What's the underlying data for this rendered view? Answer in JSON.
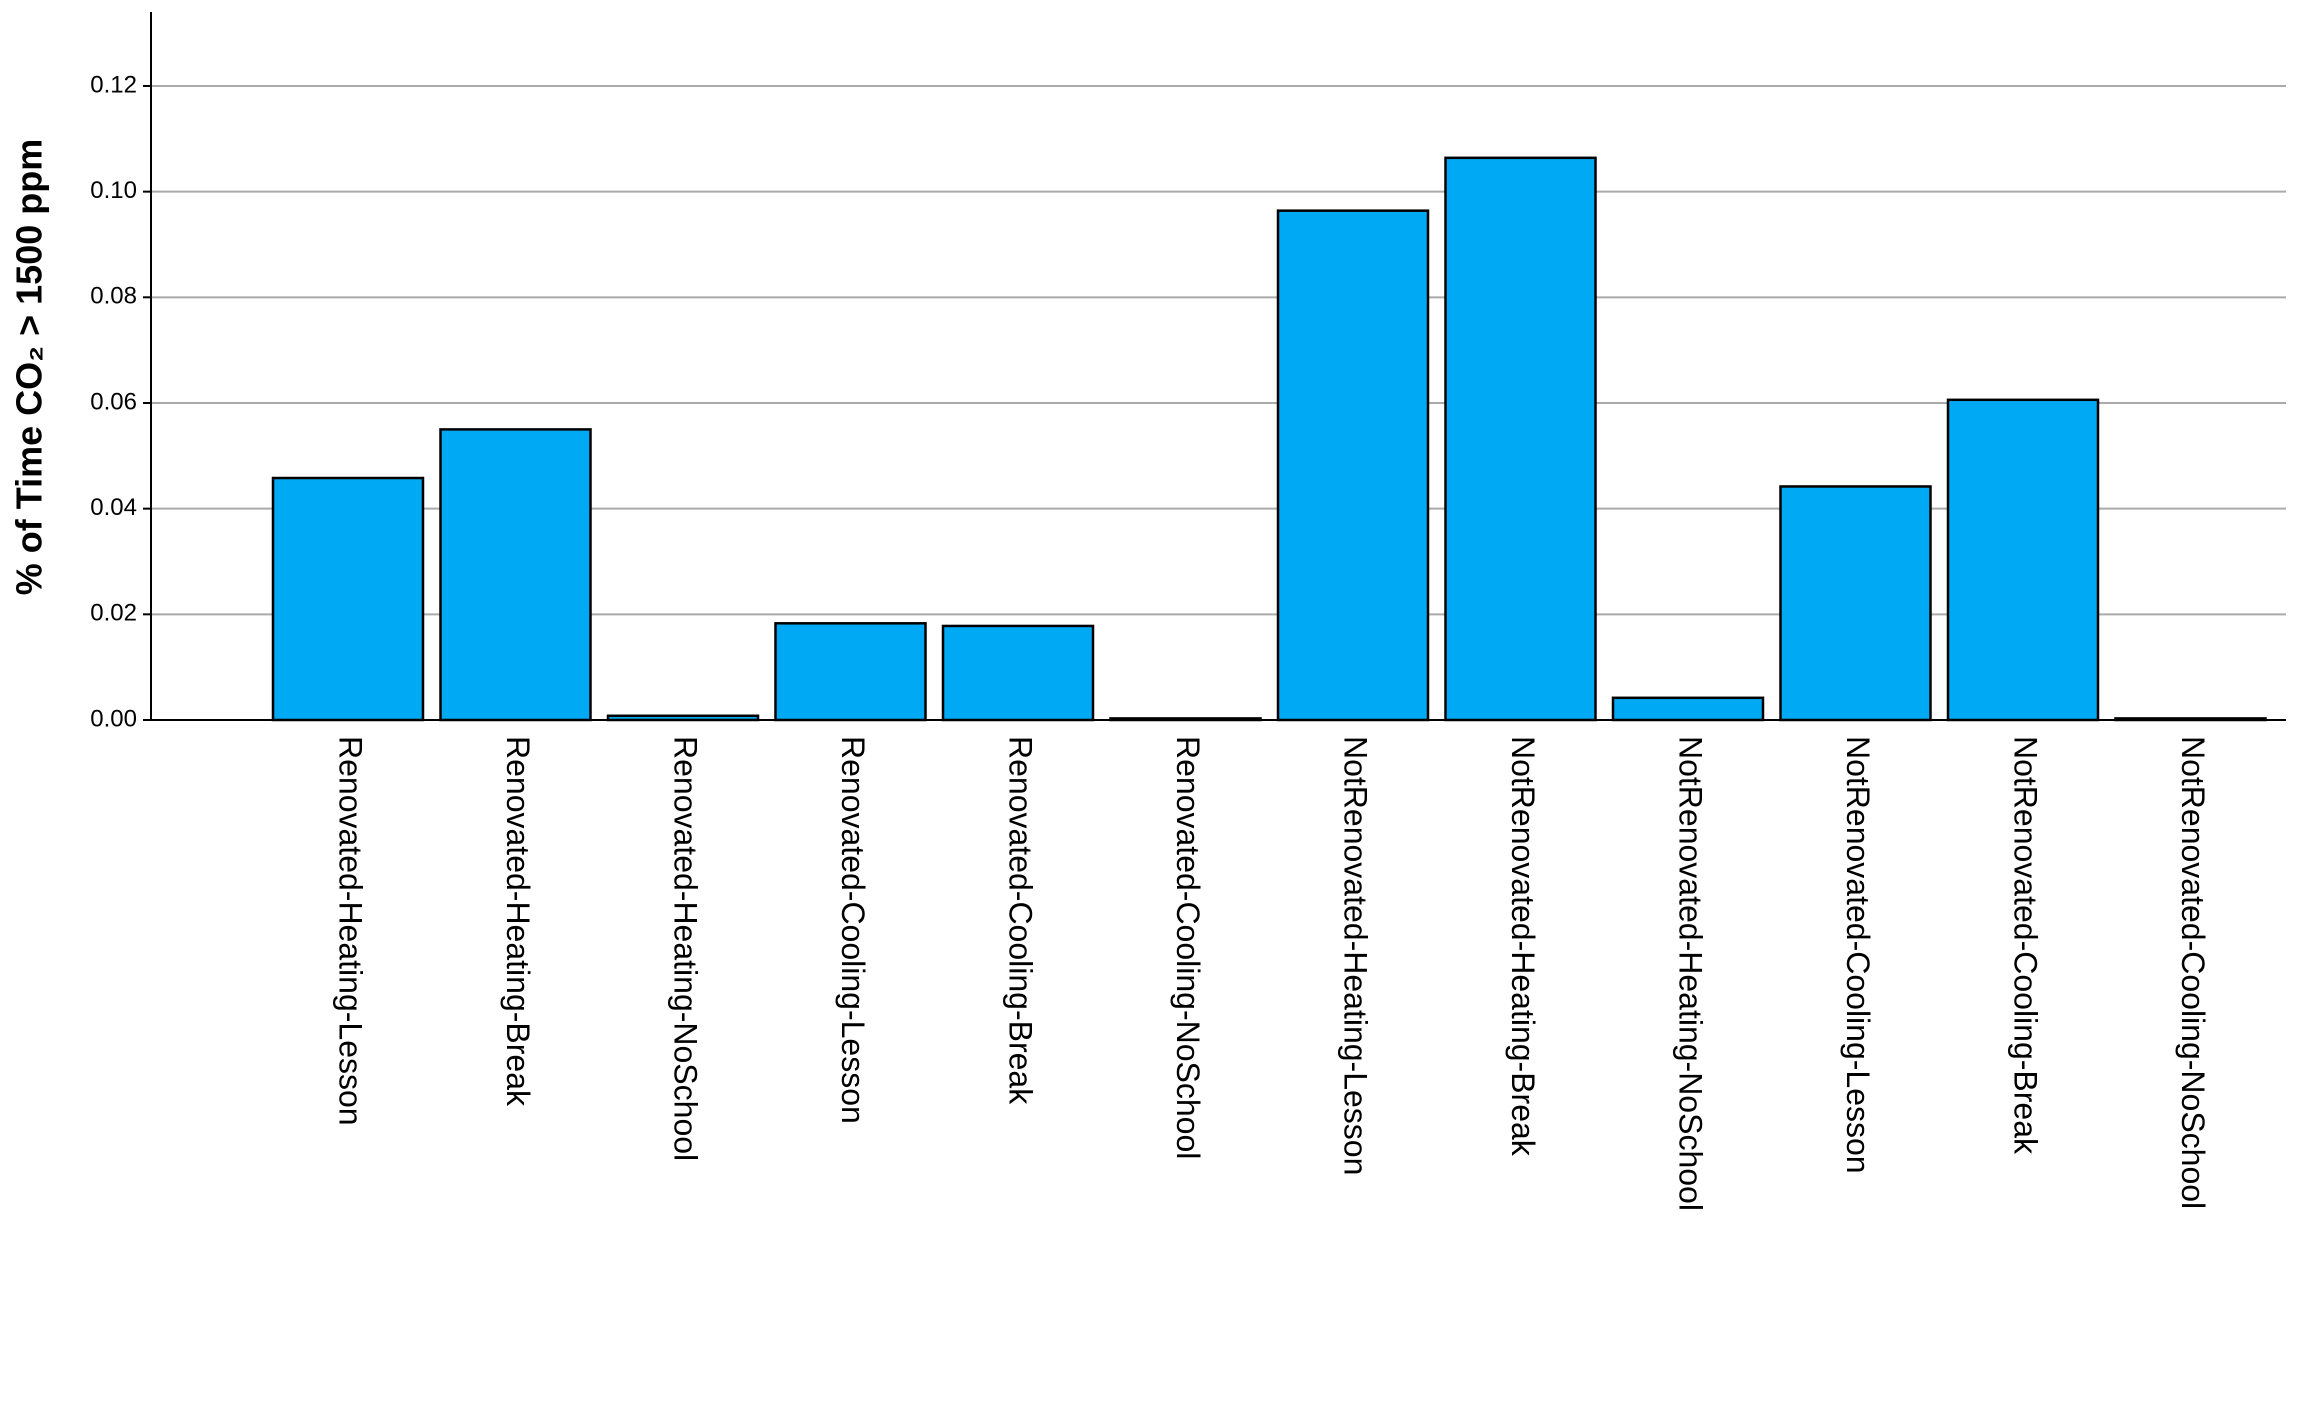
{
  "chart_data": {
    "type": "bar",
    "y_label": "% of Time CO₂ > 1500 ppm",
    "categories": [
      "Renovated-Heating-Lesson",
      "Renovated-Heating-Break",
      "Renovated-Heating-NoSchool",
      "Renovated-Cooling-Lesson",
      "Renovated-Cooling-Break",
      "Renovated-Cooling-NoSchool",
      "NotRenovated-Heating-Lesson",
      "NotRenovated-Heating-Break",
      "NotRenovated-Heating-NoSchool",
      "NotRenovated-Cooling-Lesson",
      "NotRenovated-Cooling-Break",
      "NotRenovated-Cooling-NoSchool"
    ],
    "values": [
      0.0458,
      0.055,
      0.0008,
      0.0183,
      0.0178,
      0.0003,
      0.0964,
      0.1064,
      0.0042,
      0.0442,
      0.0606,
      0.0003
    ],
    "color": "#00a9f4",
    "ylim": [
      0,
      0.134
    ],
    "yticks": [
      {
        "value": 0,
        "label": "0.00"
      },
      {
        "value": 0.02,
        "label": "0.02"
      },
      {
        "value": 0.04,
        "label": "0.04"
      },
      {
        "value": 0.06,
        "label": "0.06"
      },
      {
        "value": 0.08,
        "label": "0.08"
      },
      {
        "value": 0.1,
        "label": "0.10"
      },
      {
        "value": 0.12,
        "label": "0.12"
      }
    ],
    "grid": true
  }
}
